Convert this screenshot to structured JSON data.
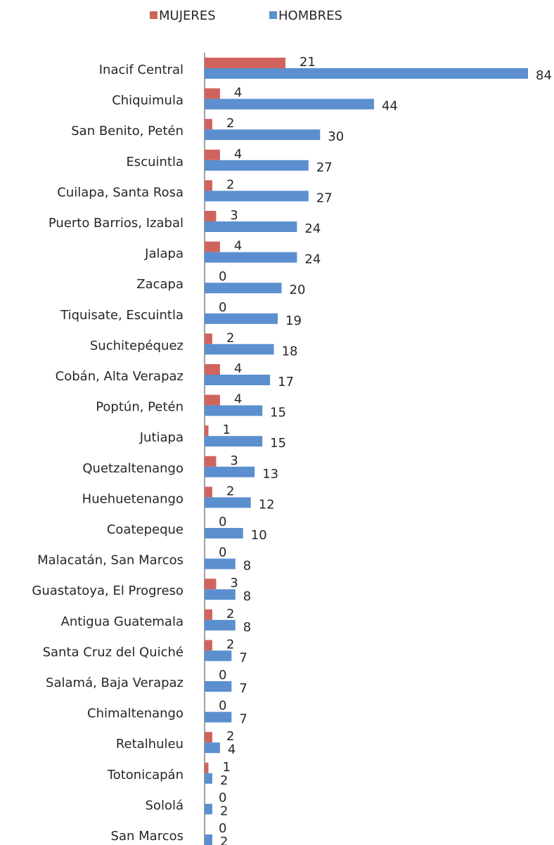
{
  "chart_data": {
    "type": "bar",
    "orientation": "horizontal",
    "categories": [
      "Inacif Central",
      "Chiquimula",
      "San Benito, Petén",
      "Escuintla",
      "Cuilapa, Santa Rosa",
      "Puerto Barrios, Izabal",
      "Jalapa",
      "Zacapa",
      "Tiquisate,  Escuintla",
      "Suchitepéquez",
      "Cobán, Alta Verapaz",
      "Poptún, Petén",
      "Jutiapa",
      "Quetzaltenango",
      "Huehuetenango",
      "Coatepeque",
      "Malacatán, San Marcos",
      "Guastatoya, El Progreso",
      "Antigua Guatemala",
      "Santa Cruz del Quiché",
      "Salamá, Baja Verapaz",
      "Chimaltenango",
      "Retalhuleu",
      "Totonicapán",
      "Sololá",
      "San Marcos"
    ],
    "series": [
      {
        "name": "MUJERES",
        "color": "#d0635c",
        "values": [
          21,
          4,
          2,
          4,
          2,
          3,
          4,
          0,
          0,
          2,
          4,
          4,
          1,
          3,
          2,
          0,
          0,
          3,
          2,
          2,
          0,
          0,
          2,
          1,
          0,
          0
        ]
      },
      {
        "name": "HOMBRES",
        "color": "#5b8fcf",
        "values": [
          84,
          44,
          30,
          27,
          27,
          24,
          24,
          20,
          19,
          18,
          17,
          15,
          15,
          13,
          12,
          10,
          8,
          8,
          8,
          7,
          7,
          7,
          4,
          2,
          2,
          2
        ]
      }
    ],
    "legend": "top"
  }
}
